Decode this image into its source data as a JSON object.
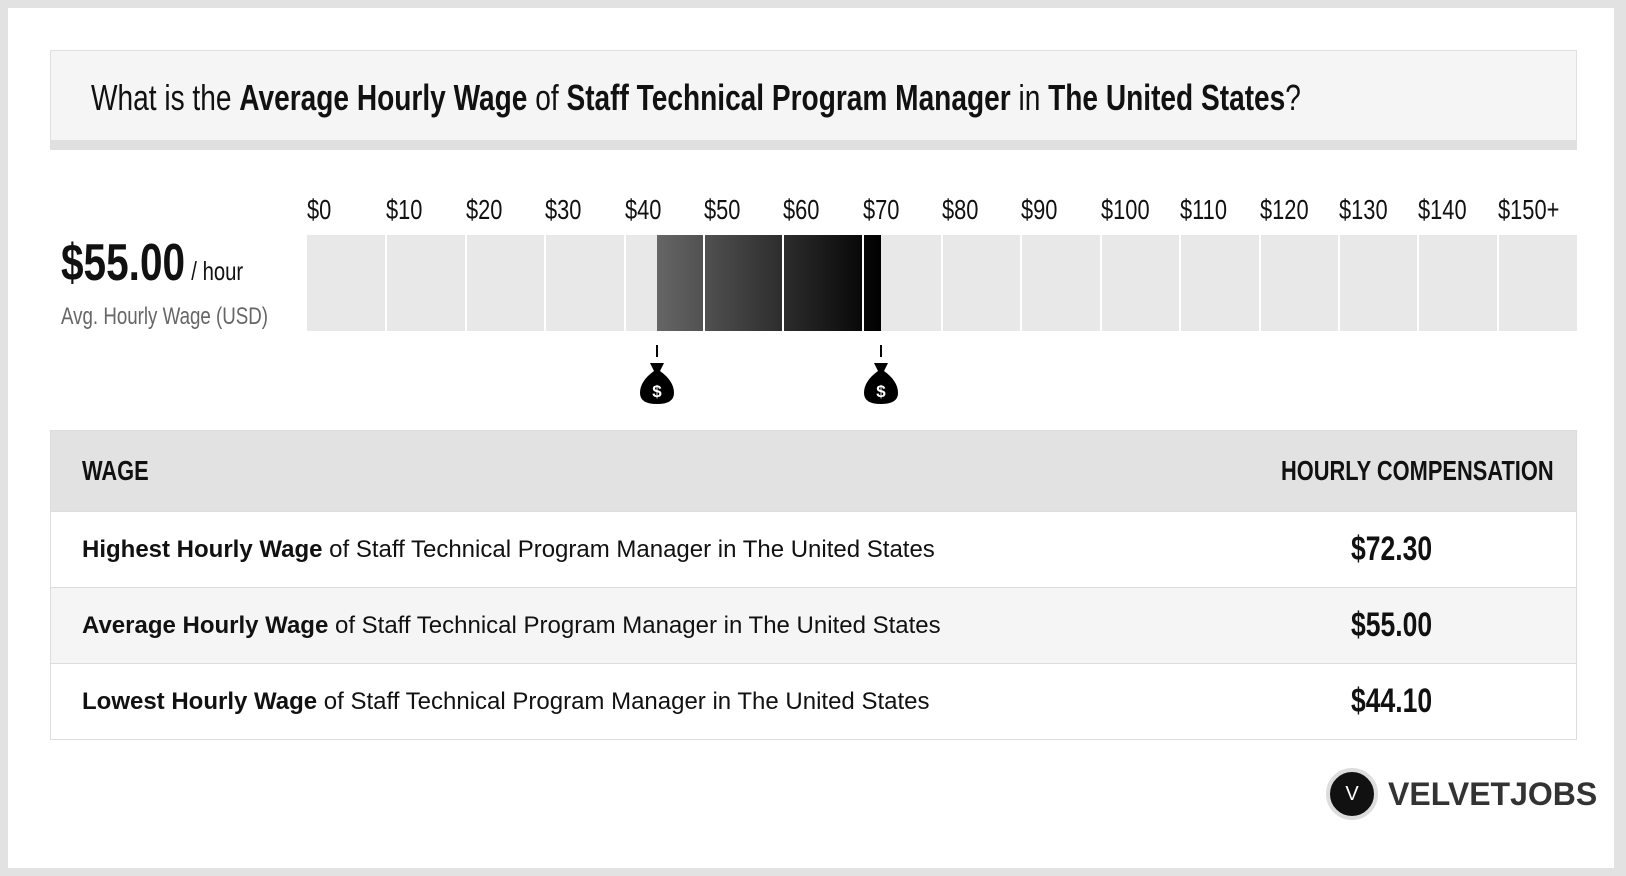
{
  "title": {
    "p1": "What is the ",
    "b1": "Average Hourly Wage",
    "p2": " of ",
    "b2": "Staff Technical Program Manager",
    "p3": " in ",
    "b3": "The United States",
    "p4": "?"
  },
  "summary": {
    "value": "$55.00",
    "unit": "/ hour",
    "label": "Avg. Hourly Wage (USD)"
  },
  "scale": {
    "ticks": [
      "$0",
      "$10",
      "$20",
      "$30",
      "$40",
      "$50",
      "$60",
      "$70",
      "$80",
      "$90",
      "$100",
      "$110",
      "$120",
      "$130",
      "$140",
      "$150+"
    ],
    "min": 0,
    "max": 160,
    "low": 44.1,
    "high": 72.3,
    "marker_icon": "money-bag-icon"
  },
  "table": {
    "headers": [
      "WAGE",
      "HOURLY COMPENSATION"
    ],
    "rows": [
      {
        "bold": "Highest Hourly Wage",
        "rest": " of Staff Technical Program Manager in The United States",
        "value": "$72.30"
      },
      {
        "bold": "Average Hourly Wage",
        "rest": " of Staff Technical Program Manager in The United States",
        "value": "$55.00"
      },
      {
        "bold": "Lowest Hourly Wage",
        "rest": " of Staff Technical Program Manager in The United States",
        "value": "$44.10"
      }
    ]
  },
  "logo": {
    "mark": "V",
    "name": "VELVETJOBS"
  }
}
